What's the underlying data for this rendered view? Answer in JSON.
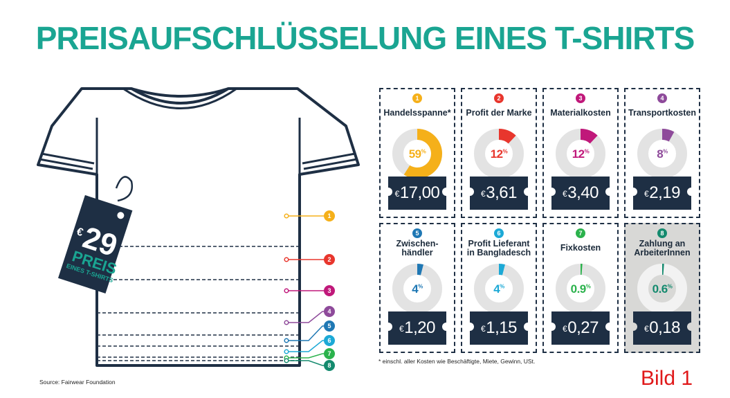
{
  "title": "PREISAUFSCHLÜSSELUNG EINES T-SHIRTS",
  "tag": {
    "currency": "€",
    "price": "29",
    "word": "PREIS",
    "sub": "EINES T-SHIRTS"
  },
  "footnote": "* einschl. aller Kosten wie Beschäftigte, Miete, Gewinn, USt.",
  "source": "Source: Fairwear Foundation",
  "bild": "Bild 1",
  "chart_data": {
    "type": "pie",
    "title": "PREISAUFSCHLÜSSELUNG EINES T-SHIRTS",
    "total_price": 29,
    "currency": "€",
    "items": [
      {
        "num": "1",
        "label": "Handelsspanne*",
        "percent": 59,
        "pct_label": "59",
        "price": "17,00",
        "color": "#f5b01a"
      },
      {
        "num": "2",
        "label": "Profit der Marke",
        "percent": 12,
        "pct_label": "12",
        "price": "3,61",
        "color": "#e8362d"
      },
      {
        "num": "3",
        "label": "Materialkosten",
        "percent": 12,
        "pct_label": "12",
        "price": "3,40",
        "color": "#c0187a"
      },
      {
        "num": "4",
        "label": "Transportkosten",
        "percent": 8,
        "pct_label": "8",
        "price": "2,19",
        "color": "#8e4a9a"
      },
      {
        "num": "5",
        "label": "Zwischen-\nhändler",
        "percent": 4,
        "pct_label": "4",
        "price": "1,20",
        "color": "#1f78b4"
      },
      {
        "num": "6",
        "label": "Profit Lieferant\nin Bangladesch",
        "percent": 4,
        "pct_label": "4",
        "price": "1,15",
        "color": "#1ca9d6"
      },
      {
        "num": "7",
        "label": "Fixkosten",
        "percent": 0.9,
        "pct_label": "0.9",
        "price": "0,27",
        "color": "#2bb24c"
      },
      {
        "num": "8",
        "label": "Zahlung an\nArbeiterInnen",
        "percent": 0.6,
        "pct_label": "0.6",
        "price": "0,18",
        "color": "#148a6e"
      }
    ],
    "pct_sign": "%"
  }
}
